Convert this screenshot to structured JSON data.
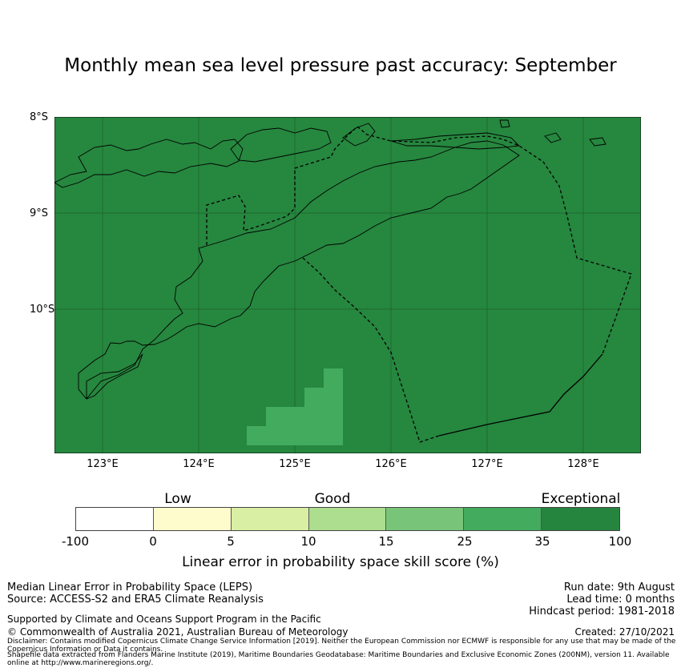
{
  "title": "Monthly mean sea level pressure past accuracy: September",
  "map": {
    "lat_labels": [
      "8°S",
      "9°S",
      "10°S"
    ],
    "lon_labels": [
      "123°E",
      "124°E",
      "125°E",
      "126°E",
      "127°E",
      "128°E"
    ],
    "extent": {
      "lon": [
        122.5,
        128.6
      ],
      "lat": [
        -11.5,
        -8.0
      ]
    },
    "background_color": "#26873f",
    "patch_color": "#42ab5d",
    "patch_range": "25-35"
  },
  "colorbar": {
    "categories": [
      "Low",
      "Good",
      "Exceptional"
    ],
    "ticks": [
      "-100",
      "0",
      "5",
      "10",
      "15",
      "25",
      "35",
      "100"
    ],
    "colors": [
      "#ffffff",
      "#fefccc",
      "#d9efa3",
      "#addd8e",
      "#78c57a",
      "#42ab5d",
      "#25843d"
    ],
    "label": "Linear error in probability space skill score (%)"
  },
  "footer": {
    "line1": "Median Linear Error in Probability Space (LEPS)",
    "line2": "Source: ACCESS-S2 and ERA5 Climate Reanalysis",
    "run_date": "Run date: 9th August",
    "lead_time": "Lead time: 0 months",
    "hindcast": "Hindcast period: 1981-2018",
    "support": "Supported by Climate and Oceans Support Program in the Pacific",
    "copyright": "© Commonwealth of Australia 2021, Australian Bureau of Meteorology",
    "created": "Created: 27/10/2021",
    "disclaimer": "Disclaimer: Contains modified Copernicus Climate Change Service Information [2019]. Neither the European Commission nor ECMWF is responsible for any use that may be made of the Copernicus Information or Data it contains.",
    "shapefile": "Shapefile data extracted from Flanders Marine Institute (2019), Maritime Boundaries Geodatabase: Maritime Boundaries and Exclusive Economic Zones (200NM), version 11. Available online at http://www.marineregions.org/."
  }
}
